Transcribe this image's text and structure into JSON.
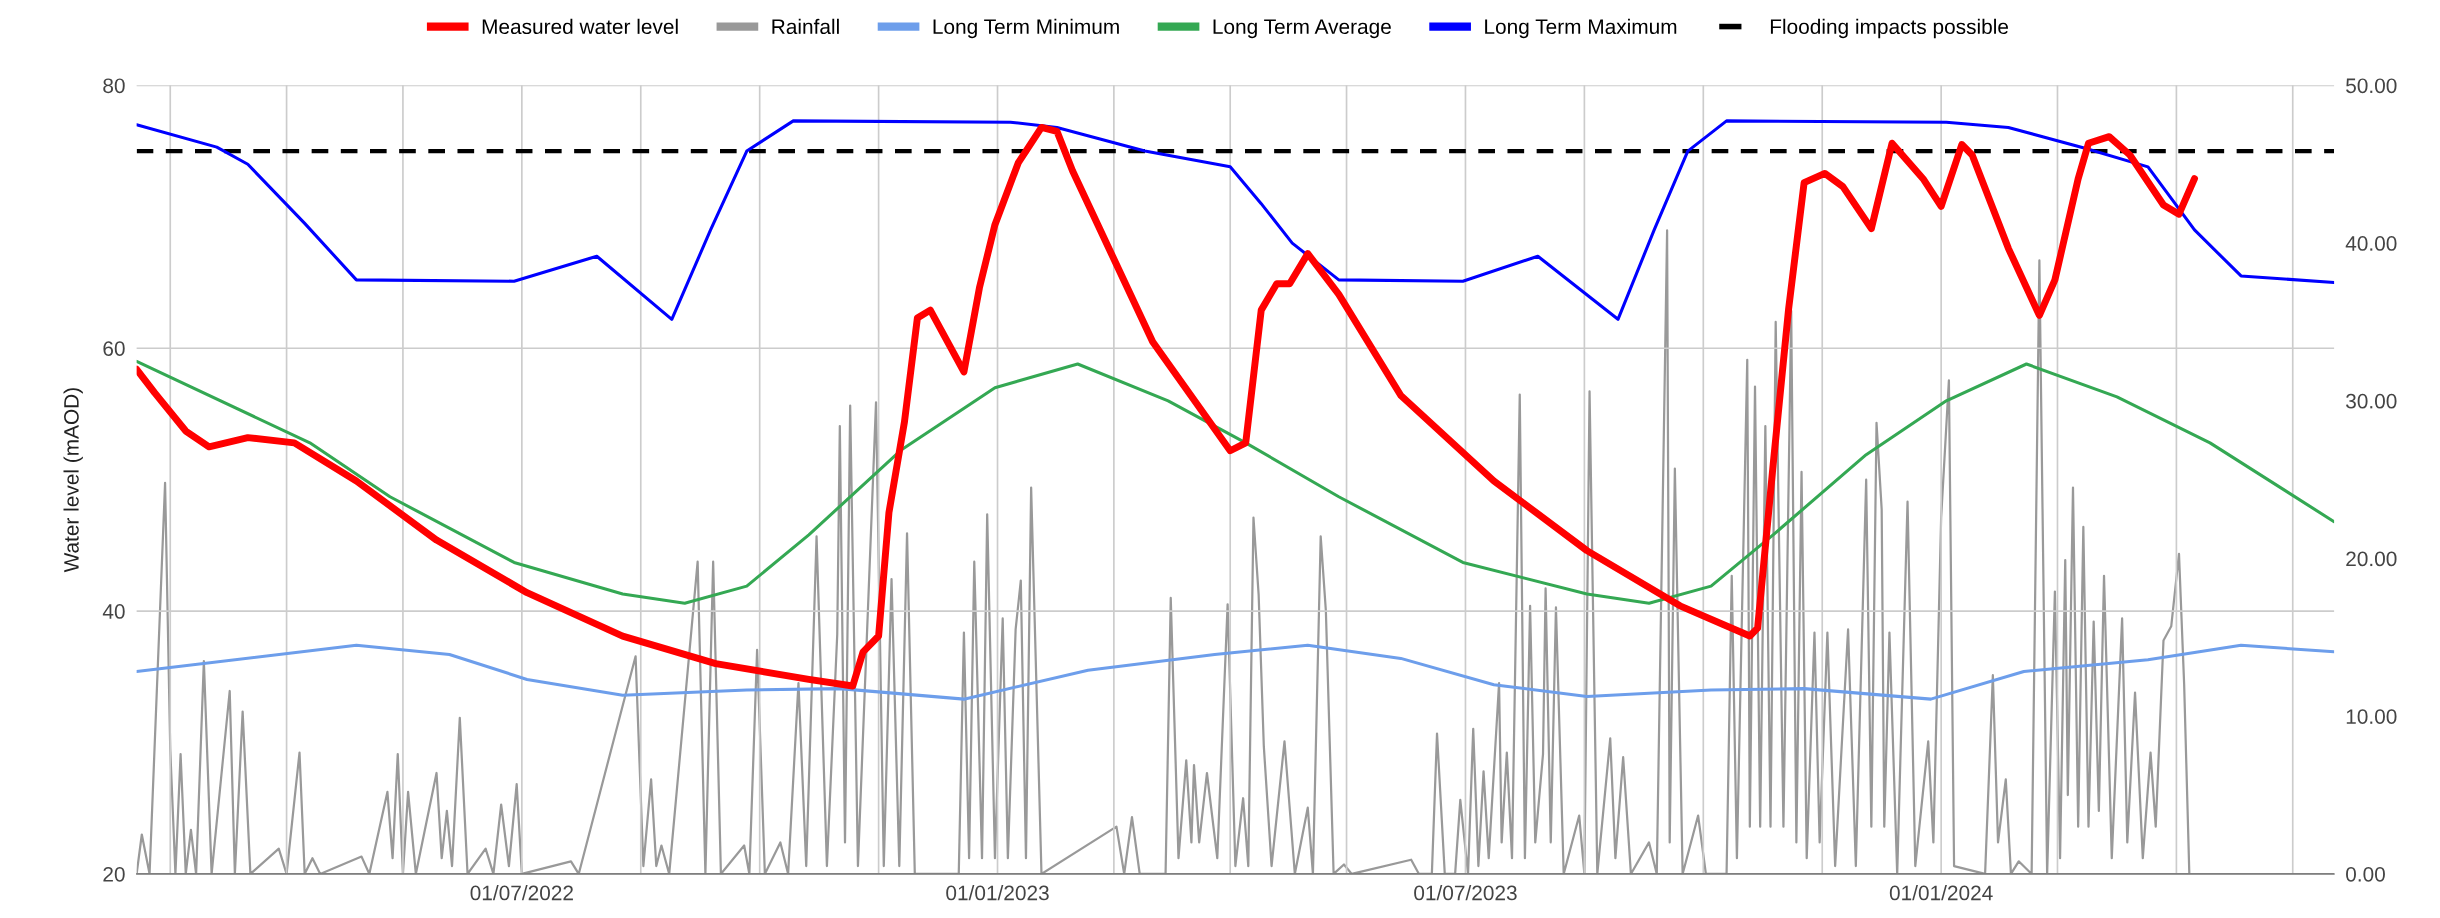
{
  "chart_data": {
    "type": "line",
    "ylabel": "Water level (mAOD)",
    "legend": "top",
    "grid": true,
    "line_style": "solid",
    "marker": "none",
    "xlim": [
      "2022-02-02",
      "2024-06-01"
    ],
    "xticks": [
      {
        "value": "2022-02-15",
        "label": null
      },
      {
        "value": "2022-04-01",
        "label": null
      },
      {
        "value": "2022-05-16",
        "label": null
      },
      {
        "value": "2022-07-01",
        "label": "01/07/2022"
      },
      {
        "value": "2022-08-16",
        "label": null
      },
      {
        "value": "2022-10-01",
        "label": null
      },
      {
        "value": "2022-11-16",
        "label": null
      },
      {
        "value": "2023-01-01",
        "label": "01/01/2023"
      },
      {
        "value": "2023-02-15",
        "label": null
      },
      {
        "value": "2023-04-01",
        "label": null
      },
      {
        "value": "2023-05-16",
        "label": null
      },
      {
        "value": "2023-07-01",
        "label": "01/07/2023"
      },
      {
        "value": "2023-08-16",
        "label": null
      },
      {
        "value": "2023-10-01",
        "label": null
      },
      {
        "value": "2023-11-16",
        "label": null
      },
      {
        "value": "2024-01-01",
        "label": "01/01/2024"
      },
      {
        "value": "2024-02-15",
        "label": null
      },
      {
        "value": "2024-04-01",
        "label": null
      },
      {
        "value": "2024-05-16",
        "label": null
      }
    ],
    "ylim": [
      20,
      80
    ],
    "yticks": [
      20,
      40,
      60,
      80
    ],
    "y2lim": [
      0,
      50
    ],
    "y2ticks": [
      {
        "value": 0,
        "label": "0.00"
      },
      {
        "value": 10,
        "label": "10.00"
      },
      {
        "value": 20,
        "label": "20.00"
      },
      {
        "value": 30,
        "label": "30.00"
      },
      {
        "value": 40,
        "label": "40.00"
      },
      {
        "value": 50,
        "label": "50.00"
      }
    ],
    "ref_lines": [
      {
        "axis": "y",
        "value": 75,
        "label": "Flooding impacts possible",
        "color": "#000000",
        "line_style": "dashed"
      }
    ],
    "series": [
      {
        "name": "Measured water level",
        "color": "#ff0000",
        "x": [
          "2022-02-02",
          "2022-02-09",
          "2022-02-21",
          "2022-03-02",
          "2022-03-17",
          "2022-04-04",
          "2022-04-28",
          "2022-05-29",
          "2022-07-03",
          "2022-08-09",
          "2022-09-14",
          "2022-10-20",
          "2022-11-06",
          "2022-11-10",
          "2022-11-16",
          "2022-11-20",
          "2022-11-26",
          "2022-12-01",
          "2022-12-06",
          "2022-12-19",
          "2022-12-25",
          "2022-12-31",
          "2023-01-09",
          "2023-01-18",
          "2023-01-24",
          "2023-01-30",
          "2023-03-02",
          "2023-04-01",
          "2023-04-07",
          "2023-04-13",
          "2023-04-19",
          "2023-04-24",
          "2023-05-01",
          "2023-05-13",
          "2023-06-06",
          "2023-07-12",
          "2023-08-17",
          "2023-09-22",
          "2023-10-19",
          "2023-10-22",
          "2023-10-28",
          "2023-11-03",
          "2023-11-09",
          "2023-11-17",
          "2023-11-24",
          "2023-12-05",
          "2023-12-13",
          "2023-12-25",
          "2024-01-01",
          "2024-01-09",
          "2024-01-13",
          "2024-01-27",
          "2024-02-08",
          "2024-02-14",
          "2024-02-23",
          "2024-02-27",
          "2024-03-06",
          "2024-03-14",
          "2024-03-27",
          "2024-04-02",
          "2024-04-08"
        ],
        "values": [
          58.4,
          56.6,
          53.7,
          52.5,
          53.2,
          52.8,
          49.9,
          45.4,
          41.4,
          38.1,
          36.0,
          34.8,
          34.3,
          36.9,
          38.1,
          47.5,
          54.4,
          62.3,
          62.9,
          58.2,
          64.6,
          69.4,
          74.1,
          76.8,
          76.5,
          73.5,
          60.5,
          52.2,
          52.8,
          62.9,
          64.9,
          64.9,
          67.2,
          64.1,
          56.4,
          49.9,
          44.6,
          40.4,
          38.1,
          38.7,
          51.1,
          63.0,
          72.6,
          73.3,
          72.3,
          69.1,
          75.6,
          72.9,
          70.8,
          75.5,
          74.7,
          67.6,
          62.5,
          65.2,
          72.9,
          75.6,
          76.1,
          74.7,
          70.9,
          70.2,
          72.9
        ]
      },
      {
        "name": "Rainfall",
        "color": "#999999",
        "axis": "y2",
        "x": [
          "2022-02-02",
          "2022-02-04",
          "2022-02-07",
          "2022-02-13",
          "2022-02-15",
          "2022-02-17",
          "2022-02-19",
          "2022-02-21",
          "2022-02-23",
          "2022-02-25",
          "2022-02-28",
          "2022-03-03",
          "2022-03-10",
          "2022-03-12",
          "2022-03-15",
          "2022-03-18",
          "2022-03-29",
          "2022-04-01",
          "2022-04-06",
          "2022-04-08",
          "2022-04-11",
          "2022-04-14",
          "2022-04-30",
          "2022-05-03",
          "2022-05-10",
          "2022-05-12",
          "2022-05-14",
          "2022-05-16",
          "2022-05-18",
          "2022-05-21",
          "2022-05-29",
          "2022-05-31",
          "2022-06-02",
          "2022-06-04",
          "2022-06-07",
          "2022-06-10",
          "2022-06-17",
          "2022-06-20",
          "2022-06-23",
          "2022-06-26",
          "2022-06-29",
          "2022-07-01",
          "2022-07-20",
          "2022-07-23",
          "2022-08-14",
          "2022-08-17",
          "2022-08-20",
          "2022-08-22",
          "2022-08-24",
          "2022-08-27",
          "2022-09-07",
          "2022-09-10",
          "2022-09-13",
          "2022-09-16",
          "2022-09-25",
          "2022-09-27",
          "2022-09-30",
          "2022-10-03",
          "2022-10-09",
          "2022-10-12",
          "2022-10-16",
          "2022-10-19",
          "2022-10-23",
          "2022-10-27",
          "2022-10-31",
          "2022-11-01",
          "2022-11-03",
          "2022-11-05",
          "2022-11-08",
          "2022-11-15",
          "2022-11-18",
          "2022-11-21",
          "2022-11-24",
          "2022-11-27",
          "2022-11-30",
          "2022-12-17",
          "2022-12-19",
          "2022-12-21",
          "2022-12-23",
          "2022-12-26",
          "2022-12-28",
          "2022-12-31",
          "2023-01-03",
          "2023-01-05",
          "2023-01-08",
          "2023-01-10",
          "2023-01-12",
          "2023-01-14",
          "2023-01-18",
          "2023-02-16",
          "2023-02-19",
          "2023-02-22",
          "2023-02-25",
          "2023-03-07",
          "2023-03-09",
          "2023-03-12",
          "2023-03-15",
          "2023-03-17",
          "2023-03-18",
          "2023-03-20",
          "2023-03-23",
          "2023-03-27",
          "2023-03-31",
          "2023-04-03",
          "2023-04-06",
          "2023-04-08",
          "2023-04-10",
          "2023-04-12",
          "2023-04-14",
          "2023-04-17",
          "2023-04-22",
          "2023-04-26",
          "2023-05-01",
          "2023-05-03",
          "2023-05-06",
          "2023-05-08",
          "2023-05-11",
          "2023-05-15",
          "2023-05-18",
          "2023-06-10",
          "2023-06-13",
          "2023-06-18",
          "2023-06-20",
          "2023-06-23",
          "2023-06-27",
          "2023-06-29",
          "2023-07-02",
          "2023-07-04",
          "2023-07-06",
          "2023-07-08",
          "2023-07-10",
          "2023-07-14",
          "2023-07-15",
          "2023-07-17",
          "2023-07-19",
          "2023-07-22",
          "2023-07-24",
          "2023-07-26",
          "2023-07-28",
          "2023-07-31",
          "2023-08-01",
          "2023-08-03",
          "2023-08-05",
          "2023-08-08",
          "2023-08-14",
          "2023-08-16",
          "2023-08-18",
          "2023-08-21",
          "2023-08-26",
          "2023-08-28",
          "2023-08-31",
          "2023-09-03",
          "2023-09-10",
          "2023-09-13",
          "2023-09-17",
          "2023-09-18",
          "2023-09-20",
          "2023-09-23",
          "2023-09-29",
          "2023-10-02",
          "2023-10-10",
          "2023-10-12",
          "2023-10-14",
          "2023-10-18",
          "2023-10-19",
          "2023-10-21",
          "2023-10-23",
          "2023-10-25",
          "2023-10-27",
          "2023-10-29",
          "2023-11-01",
          "2023-11-04",
          "2023-11-06",
          "2023-11-08",
          "2023-11-10",
          "2023-11-13",
          "2023-11-15",
          "2023-11-18",
          "2023-11-21",
          "2023-11-26",
          "2023-11-29",
          "2023-12-03",
          "2023-12-05",
          "2023-12-07",
          "2023-12-09",
          "2023-12-10",
          "2023-12-12",
          "2023-12-15",
          "2023-12-19",
          "2023-12-22",
          "2023-12-27",
          "2023-12-29",
          "2024-01-01",
          "2024-01-04",
          "2024-01-06",
          "2024-01-18",
          "2024-01-21",
          "2024-01-23",
          "2024-01-26",
          "2024-01-28",
          "2024-01-31",
          "2024-02-05",
          "2024-02-08",
          "2024-02-11",
          "2024-02-14",
          "2024-02-16",
          "2024-02-18",
          "2024-02-19",
          "2024-02-21",
          "2024-02-23",
          "2024-02-25",
          "2024-02-27",
          "2024-02-29",
          "2024-03-02",
          "2024-03-04",
          "2024-03-07",
          "2024-03-11",
          "2024-03-13",
          "2024-03-16",
          "2024-03-19",
          "2024-03-22",
          "2024-03-24",
          "2024-03-27",
          "2024-03-30",
          "2024-04-02",
          "2024-04-04",
          "2024-04-06"
        ],
        "values": [
          0,
          2.5,
          0,
          24.8,
          7.9,
          0,
          7.6,
          0,
          2.8,
          0,
          13.5,
          0,
          11.6,
          0,
          10.3,
          0,
          1.6,
          0,
          7.7,
          0,
          1.0,
          0,
          1.1,
          0,
          5.2,
          1,
          7.6,
          0,
          5.2,
          0,
          6.4,
          1,
          4.0,
          0.5,
          9.9,
          0,
          1.6,
          0,
          4.4,
          0.5,
          5.7,
          0,
          0.8,
          0,
          13.8,
          0.5,
          6.0,
          0.5,
          1.8,
          0,
          19.8,
          0,
          19.8,
          0,
          1.8,
          0,
          14.2,
          0,
          2.0,
          0,
          12.1,
          0.5,
          21.4,
          0.5,
          15.2,
          28.4,
          2,
          29.7,
          0.5,
          29.9,
          0.5,
          18.7,
          0.5,
          21.6,
          0,
          0,
          15.3,
          1,
          19.8,
          1,
          22.8,
          1,
          16.2,
          1,
          15.5,
          18.6,
          1,
          24.5,
          0,
          3.0,
          0,
          3.6,
          0,
          0,
          17.5,
          1,
          7.2,
          2,
          6.9,
          2,
          6.4,
          1,
          17.1,
          0.5,
          4.8,
          0.5,
          22.6,
          17.7,
          8.1,
          0.5,
          8.4,
          0,
          4.2,
          0,
          21.4,
          16.7,
          0,
          0.6,
          0,
          0.9,
          0,
          0,
          8.9,
          0,
          0,
          4.7,
          0,
          9.2,
          0.5,
          6.5,
          1,
          12.1,
          2,
          7.7,
          1,
          30.4,
          1,
          17.0,
          2,
          7.6,
          18.1,
          2,
          16.9,
          0,
          3.7,
          0,
          30.6,
          0,
          8.6,
          1,
          7.4,
          0,
          2.0,
          0,
          40.8,
          2,
          25.7,
          0,
          3.7,
          0,
          0,
          18.9,
          1,
          32.6,
          3,
          30.9,
          3,
          28.4,
          3,
          35.0,
          3,
          35.7,
          2,
          25.5,
          1,
          15.3,
          2,
          15.3,
          0.5,
          15.5,
          0.5,
          25.0,
          3,
          28.6,
          23.1,
          3,
          15.3,
          0,
          23.6,
          0.5,
          8.4,
          2,
          22.6,
          31.3,
          0.5,
          0,
          12.6,
          2,
          6.0,
          0,
          0.8,
          0,
          38.9,
          0,
          17.9,
          1,
          19.9,
          5,
          24.5,
          3,
          22.0,
          3,
          16.0,
          4,
          18.9,
          1,
          16.2,
          2,
          11.5,
          1,
          7.7,
          3,
          14.8,
          15.7,
          20.3,
          12.0,
          0
        ]
      },
      {
        "name": "Long Term Minimum",
        "color": "#6d9eeb",
        "x": [
          "2022-02-02",
          "2022-04-28",
          "2022-06-03",
          "2022-07-03",
          "2022-08-09",
          "2022-09-26",
          "2022-11-01",
          "2022-12-19",
          "2023-02-05",
          "2023-03-26",
          "2023-05-01",
          "2023-06-06",
          "2023-07-12",
          "2023-08-17",
          "2023-10-04",
          "2023-11-09",
          "2023-12-28",
          "2024-02-02",
          "2024-03-21",
          "2024-04-26",
          "2024-06-01"
        ],
        "values": [
          35.4,
          37.4,
          36.7,
          34.8,
          33.6,
          34.0,
          34.1,
          33.3,
          35.5,
          36.7,
          37.4,
          36.4,
          34.4,
          33.5,
          34.0,
          34.1,
          33.3,
          35.4,
          36.3,
          37.4,
          36.9
        ]
      },
      {
        "name": "Long Term Average",
        "color": "#34a853",
        "x": [
          "2022-02-02",
          "2022-04-10",
          "2022-05-11",
          "2022-06-28",
          "2022-08-09",
          "2022-09-02",
          "2022-09-26",
          "2022-10-20",
          "2022-11-25",
          "2022-12-31",
          "2023-02-01",
          "2023-03-08",
          "2023-04-07",
          "2023-05-13",
          "2023-06-30",
          "2023-08-17",
          "2023-09-10",
          "2023-10-04",
          "2023-10-28",
          "2023-12-03",
          "2024-01-03",
          "2024-02-03",
          "2024-03-09",
          "2024-04-14",
          "2024-06-01"
        ],
        "values": [
          59.0,
          52.8,
          48.7,
          43.7,
          41.3,
          40.6,
          41.9,
          45.8,
          52.3,
          57.0,
          58.8,
          56.0,
          52.8,
          48.7,
          43.7,
          41.3,
          40.6,
          41.9,
          45.8,
          51.9,
          56.0,
          58.8,
          56.3,
          52.8,
          46.8
        ]
      },
      {
        "name": "Long Term Maximum",
        "color": "#0000ff",
        "x": [
          "2022-02-02",
          "2022-03-05",
          "2022-03-17",
          "2022-04-08",
          "2022-04-28",
          "2022-06-28",
          "2022-07-30",
          "2022-08-28",
          "2022-09-12",
          "2022-09-26",
          "2022-10-14",
          "2023-01-06",
          "2023-01-24",
          "2023-02-27",
          "2023-04-01",
          "2023-04-13",
          "2023-04-25",
          "2023-05-13",
          "2023-06-30",
          "2023-07-29",
          "2023-08-29",
          "2023-09-12",
          "2023-09-25",
          "2023-10-10",
          "2024-01-03",
          "2024-01-27",
          "2024-02-26",
          "2024-03-21",
          "2024-04-08",
          "2024-04-26",
          "2024-06-01"
        ],
        "values": [
          77.0,
          75.3,
          74.0,
          69.5,
          65.2,
          65.1,
          67.0,
          62.2,
          69.0,
          75.0,
          77.3,
          77.2,
          76.8,
          75.0,
          73.8,
          71.0,
          68.0,
          65.2,
          65.1,
          67.0,
          62.2,
          69.0,
          75.0,
          77.3,
          77.2,
          76.8,
          75.2,
          73.8,
          69.0,
          65.5,
          65.0
        ]
      }
    ]
  }
}
